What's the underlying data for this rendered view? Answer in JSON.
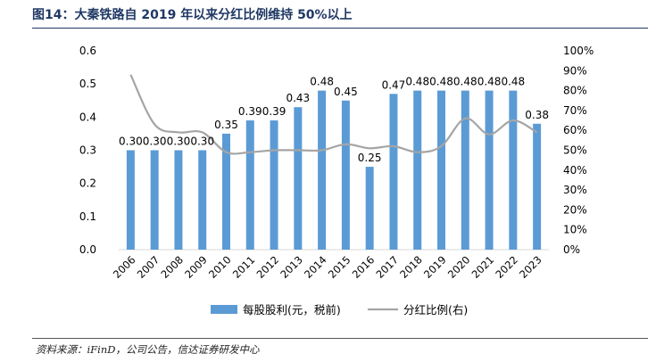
{
  "header": {
    "title": "图14：大秦铁路自 2019 年以来分红比例维持 50%以上"
  },
  "footer": {
    "source": "资料来源：iFinD，公司公告，信达证券研发中心"
  },
  "colors": {
    "bar": "#5b9bd5",
    "line": "#a5a5a5",
    "title": "#1f3864"
  },
  "chart_data": {
    "type": "bar",
    "title": "",
    "xlabel": "",
    "ylabel": "",
    "categories": [
      "2006",
      "2007",
      "2008",
      "2009",
      "2010",
      "2011",
      "2012",
      "2013",
      "2014",
      "2015",
      "2016",
      "2017",
      "2018",
      "2019",
      "2020",
      "2021",
      "2022",
      "2023"
    ],
    "ylim": [
      0,
      0.6
    ],
    "yticks": [
      "0.0",
      "0.1",
      "0.2",
      "0.3",
      "0.4",
      "0.5",
      "0.6"
    ],
    "y2lim": [
      0,
      100
    ],
    "y2ticks": [
      "0%",
      "10%",
      "20%",
      "30%",
      "40%",
      "50%",
      "60%",
      "70%",
      "80%",
      "90%",
      "100%"
    ],
    "grid": false,
    "legend": "bottom",
    "series": [
      {
        "name": "每股股利(元，税前)",
        "type": "bar",
        "axis": "left",
        "values": [
          0.3,
          0.3,
          0.3,
          0.3,
          0.35,
          0.39,
          0.39,
          0.43,
          0.48,
          0.45,
          0.25,
          0.47,
          0.48,
          0.48,
          0.48,
          0.48,
          0.48,
          0.38
        ],
        "labels": [
          "0.30",
          "0.30",
          "0.30",
          "0.30",
          "0.35",
          "0.39",
          "0.39",
          "0.43",
          "0.48",
          "0.45",
          "0.25",
          "0.47",
          "0.48",
          "0.48",
          "0.48",
          "0.48",
          "0.48",
          "0.38"
        ]
      },
      {
        "name": "分红比例(右)",
        "type": "line",
        "axis": "right",
        "values": [
          88,
          63,
          59,
          59,
          49,
          49,
          50,
          50,
          50,
          53,
          51,
          52,
          49,
          52,
          66,
          58,
          65,
          59
        ]
      }
    ]
  }
}
